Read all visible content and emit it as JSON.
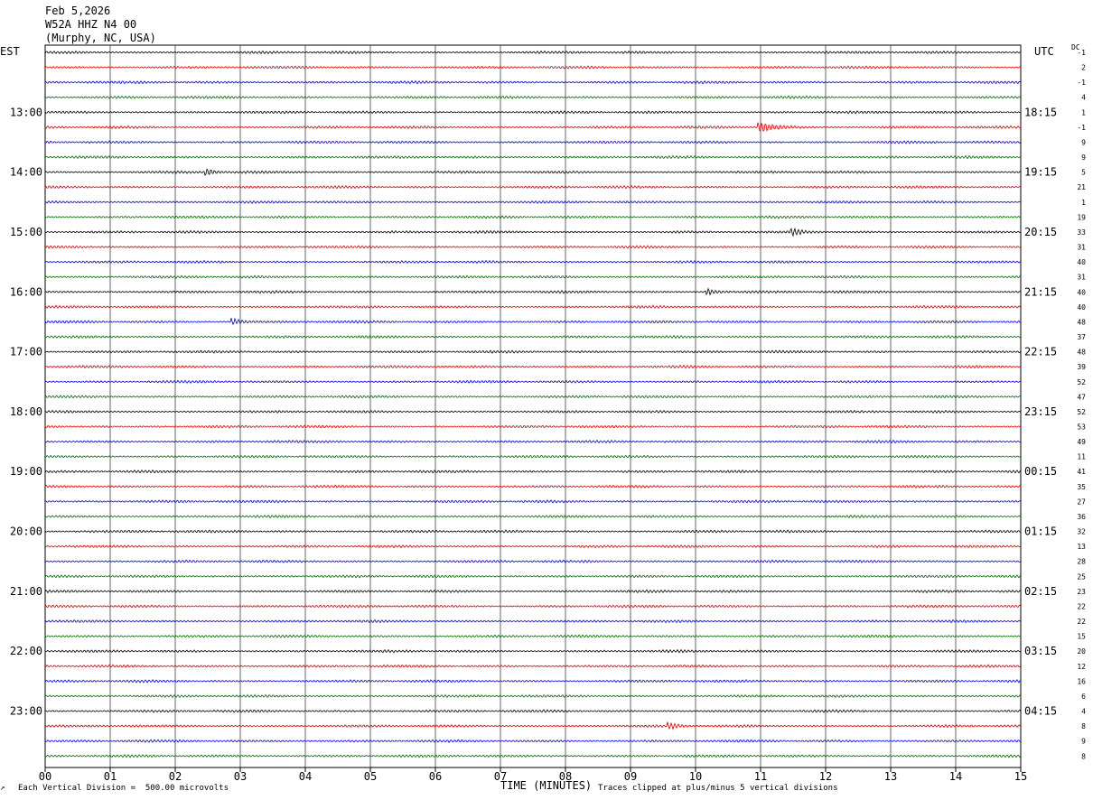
{
  "header": {
    "date": "Feb 5,2026",
    "station": "W52A HHZ N4 00",
    "location": "(Murphy, NC, USA)"
  },
  "left_timezone": "EST",
  "right_timezone": "UTC",
  "dc_header": "DC",
  "footer": {
    "scale_note": "Each Vertical Division =  500.00 microvolts",
    "clip_note": "Traces clipped at plus/minus 5 vertical divisions",
    "corner_mark": "↗"
  },
  "colors": {
    "trace_cycle": [
      "#000000",
      "#d40000",
      "#0000d4",
      "#006400"
    ],
    "grid": "#000000"
  },
  "chart_data": {
    "type": "line",
    "title": "W52A HHZ N4 00",
    "xlabel": "TIME (MINUTES)",
    "x_ticks": [
      "00",
      "01",
      "02",
      "03",
      "04",
      "05",
      "06",
      "07",
      "08",
      "09",
      "10",
      "11",
      "12",
      "13",
      "14",
      "15"
    ],
    "xlim": [
      0,
      15
    ],
    "traces_per_hour": 4,
    "left_hour_labels": [
      "13:00",
      "14:00",
      "15:00",
      "16:00",
      "17:00",
      "18:00",
      "19:00",
      "20:00",
      "21:00",
      "22:00",
      "23:00"
    ],
    "right_hour_labels": [
      "18:15",
      "19:15",
      "20:15",
      "21:15",
      "22:15",
      "23:15",
      "00:15",
      "01:15",
      "02:15",
      "03:15",
      "04:15"
    ],
    "dc_offsets": [
      "-1",
      "2",
      "-1",
      "4",
      "1",
      "-1",
      "9",
      "9",
      "5",
      "21",
      "1",
      "19",
      "33",
      "31",
      "40",
      "31",
      "40",
      "40",
      "48",
      "37",
      "48",
      "39",
      "52",
      "47",
      "52",
      "53",
      "49",
      "11",
      "41",
      "35",
      "27",
      "36",
      "32",
      "13",
      "28",
      "25",
      "23",
      "22",
      "22",
      "15",
      "20",
      "12",
      "16",
      "6",
      "4",
      "8",
      "9",
      "8"
    ],
    "events": [
      {
        "row": 5,
        "minute": 11.0,
        "note": "large burst"
      },
      {
        "row": 8,
        "minute": 2.5
      },
      {
        "row": 12,
        "minute": 11.5
      },
      {
        "row": 16,
        "minute": 10.2
      },
      {
        "row": 18,
        "minute": 2.9
      },
      {
        "row": 45,
        "minute": 9.6
      }
    ]
  }
}
